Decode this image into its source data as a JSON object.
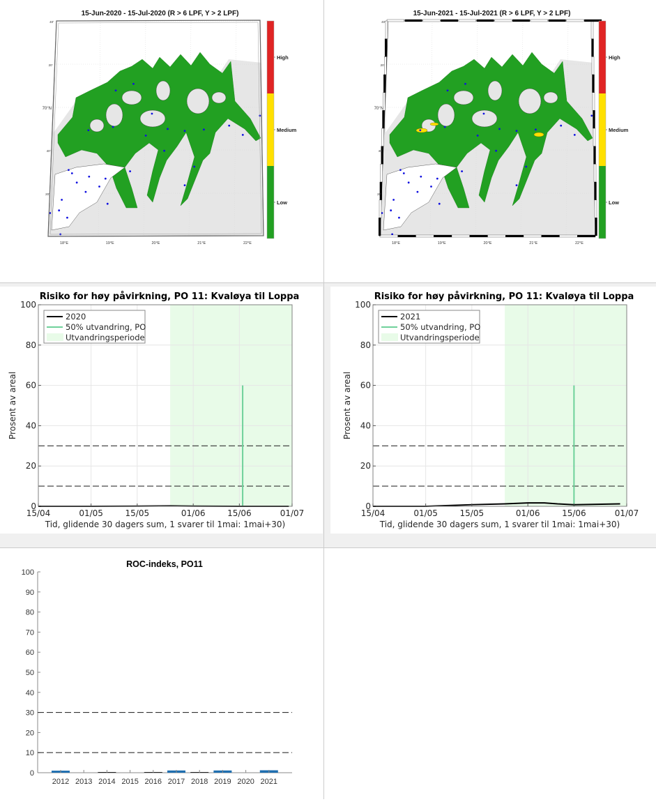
{
  "layout": {
    "panels": [
      "map-2020",
      "map-2021",
      "risk-chart-2020",
      "risk-chart-2021",
      "roc-chart",
      "empty"
    ]
  },
  "maps": [
    {
      "title": "15-Jun-2020  - 15-Jul-2020  (R > 6 LPF, Y > 2 LPF)",
      "lat_labels": [
        "40'",
        "20'",
        "70°N",
        "40'",
        "20'"
      ],
      "lon_labels": [
        "18°E",
        "19°E",
        "20°E",
        "21°E",
        "22°E"
      ],
      "frame_style": "thin",
      "medium_patches": false
    },
    {
      "title": "15-Jun-2021  - 15-Jul-2021  (R > 6 LPF, Y > 2 LPF)",
      "lat_labels": [
        "40'",
        "20'",
        "70°N",
        "40'",
        "20'"
      ],
      "lon_labels": [
        "18°E",
        "19°E",
        "20°E",
        "21°E",
        "22°E"
      ],
      "frame_style": "checkered",
      "medium_patches": true
    }
  ],
  "colorbar": {
    "levels": [
      {
        "label": "High",
        "color": "#e02424"
      },
      {
        "label": "Medium",
        "color": "#ffe000"
      },
      {
        "label": "Low",
        "color": "#22a022"
      }
    ]
  },
  "colors": {
    "land": "#e6e6e6",
    "low_risk": "#22a022",
    "medium_risk": "#ffe000",
    "high_risk": "#e02424",
    "farm_marker": "#1010e0",
    "migration_line": "#6fd19a",
    "migration_fill": "#e8fbe8",
    "roc_bar": "#1f6fb0"
  },
  "chart_data": [
    {
      "type": "line",
      "title": "Risiko for høy påvirkning, PO 11: Kvaløya til Loppa",
      "xlabel": "Tid, glidende 30 dagers sum, 1 svarer til 1mai: 1mai+30)",
      "ylabel": "Prosent av areal",
      "xticks": [
        "15/04",
        "01/05",
        "15/05",
        "01/06",
        "15/06",
        "01/07"
      ],
      "yticks": [
        0,
        20,
        40,
        60,
        80,
        100
      ],
      "ylim": [
        0,
        100
      ],
      "grid": true,
      "legend": [
        "2020",
        "50% utvandring, PO",
        "Utvandringsperiode"
      ],
      "legend_position": "upper-left",
      "series": [
        {
          "name": "2020",
          "x": [
            "15/04",
            "01/05",
            "15/05",
            "25/05",
            "01/06",
            "15/06",
            "30/06"
          ],
          "values": [
            0,
            0,
            0.1,
            0.2,
            0.1,
            0,
            0
          ]
        }
      ],
      "migration_50pct_date": "16/06",
      "migration_line_height": 60,
      "migration_period": [
        "25/05",
        "01/07"
      ],
      "thresholds": [
        10,
        30
      ]
    },
    {
      "type": "line",
      "title": "Risiko for høy påvirkning, PO 11: Kvaløya til Loppa",
      "xlabel": "Tid, glidende 30 dagers sum, 1 svarer til 1mai: 1mai+30)",
      "ylabel": "Prosent av areal",
      "xticks": [
        "15/04",
        "01/05",
        "15/05",
        "01/06",
        "15/06",
        "01/07"
      ],
      "yticks": [
        0,
        20,
        40,
        60,
        80,
        100
      ],
      "ylim": [
        0,
        100
      ],
      "grid": true,
      "legend": [
        "2021",
        "50% utvandring, PO",
        "Utvandringsperiode"
      ],
      "legend_position": "upper-left",
      "series": [
        {
          "name": "2021",
          "x": [
            "15/04",
            "01/05",
            "08/05",
            "15/05",
            "25/05",
            "01/06",
            "06/06",
            "10/06",
            "15/06",
            "22/06",
            "29/06"
          ],
          "values": [
            0,
            0,
            0.4,
            0.8,
            1.2,
            1.7,
            1.7,
            1.2,
            0.8,
            1.0,
            1.2
          ]
        }
      ],
      "migration_50pct_date": "15/06",
      "migration_line_height": 60,
      "migration_period": [
        "25/05",
        "01/07"
      ],
      "thresholds": [
        10,
        30
      ]
    },
    {
      "type": "bar",
      "title": "ROC-indeks, PO11",
      "xlabel": "",
      "ylabel": "",
      "categories": [
        "2012",
        "2013",
        "2014",
        "2015",
        "2016",
        "2017",
        "2018",
        "2019",
        "2020",
        "2021"
      ],
      "values": [
        0.6,
        0,
        0.1,
        0,
        0.1,
        0.7,
        0.1,
        0.7,
        0,
        0.8
      ],
      "yticks": [
        0,
        10,
        20,
        30,
        40,
        50,
        60,
        70,
        80,
        90,
        100
      ],
      "ylim": [
        0,
        100
      ],
      "grid": false,
      "thresholds": [
        10,
        30
      ]
    }
  ]
}
